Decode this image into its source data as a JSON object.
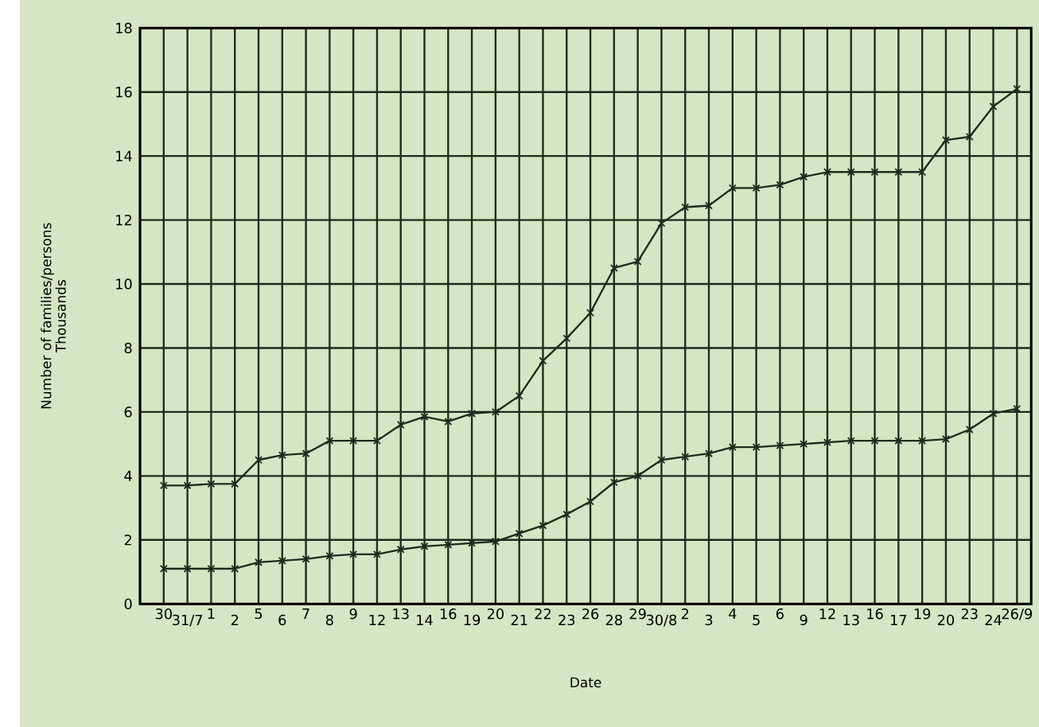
{
  "chart_data": {
    "type": "line",
    "xlabel": "Date",
    "ylabel": "Number of families/persons Thousands",
    "categories": [
      "30",
      "31/7",
      "1",
      "2",
      "5",
      "6",
      "7",
      "8",
      "9",
      "12",
      "13",
      "14",
      "16",
      "19",
      "20",
      "21",
      "22",
      "23",
      "26",
      "28",
      "29",
      "30/8",
      "2",
      "3",
      "4",
      "5",
      "6",
      "9",
      "12",
      "13",
      "16",
      "17",
      "19",
      "20",
      "23",
      "24",
      "26/9"
    ],
    "series": [
      {
        "color": "#1e2a1e",
        "marker": "cross",
        "values": [
          3.7,
          3.7,
          3.75,
          3.75,
          4.5,
          4.65,
          4.7,
          5.1,
          5.1,
          5.1,
          5.6,
          5.85,
          5.7,
          5.95,
          6.0,
          6.5,
          7.6,
          8.3,
          9.1,
          10.5,
          10.7,
          11.9,
          12.4,
          12.45,
          13.0,
          13.0,
          13.1,
          13.35,
          13.5,
          13.5,
          13.5,
          13.5,
          13.5,
          14.5,
          14.6,
          15.55,
          16.1
        ]
      },
      {
        "color": "#1e2a1e",
        "marker": "cross",
        "values": [
          1.1,
          1.1,
          1.1,
          1.1,
          1.3,
          1.35,
          1.4,
          1.5,
          1.55,
          1.55,
          1.7,
          1.8,
          1.85,
          1.9,
          1.95,
          2.2,
          2.45,
          2.8,
          3.2,
          3.8,
          4.0,
          4.5,
          4.6,
          4.7,
          4.9,
          4.9,
          4.95,
          5.0,
          5.05,
          5.1,
          5.1,
          5.1,
          5.1,
          5.15,
          5.45,
          5.95,
          6.1
        ]
      }
    ],
    "ylim": [
      0,
      18
    ],
    "yticks": [
      0,
      2,
      4,
      6,
      8,
      10,
      12,
      14,
      16,
      18
    ],
    "grid": true,
    "line_style": "solid"
  }
}
